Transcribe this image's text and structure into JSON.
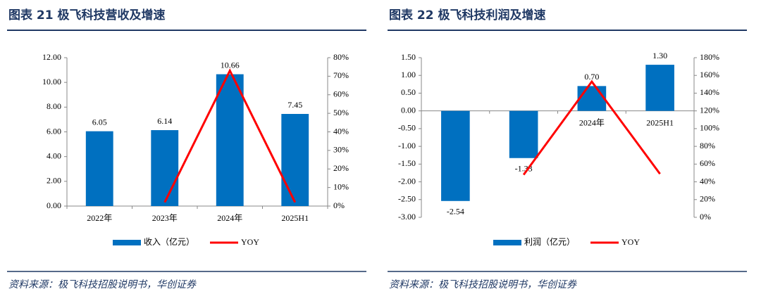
{
  "chart_data": [
    {
      "type": "bar",
      "title": "图表 21   极飞科技营收及增速",
      "categories": [
        "2022年",
        "2023年",
        "2024年",
        "2025H1"
      ],
      "series": [
        {
          "name": "收入（亿元）",
          "type": "bar",
          "color": "#0070c0",
          "values": [
            6.05,
            6.14,
            10.66,
            7.45
          ],
          "value_labels": [
            "6.05",
            "6.14",
            "10.66",
            "7.45"
          ]
        },
        {
          "name": "YOY",
          "type": "line",
          "axis": "y2",
          "color": "#ff0000",
          "values": [
            null,
            2,
            73,
            2
          ]
        }
      ],
      "ylim": [
        0,
        12
      ],
      "yticks": [
        {
          "value": 0,
          "label": "0.00"
        },
        {
          "value": 2,
          "label": "2.00"
        },
        {
          "value": 4,
          "label": "4.00"
        },
        {
          "value": 6,
          "label": "6.00"
        },
        {
          "value": 8,
          "label": "8.00"
        },
        {
          "value": 10,
          "label": "10.00"
        },
        {
          "value": 12,
          "label": "12.00"
        }
      ],
      "y2lim": [
        0,
        80
      ],
      "y2ticks": [
        {
          "value": 0,
          "label": "0%"
        },
        {
          "value": 10,
          "label": "10%"
        },
        {
          "value": 20,
          "label": "20%"
        },
        {
          "value": 30,
          "label": "30%"
        },
        {
          "value": 40,
          "label": "40%"
        },
        {
          "value": 50,
          "label": "50%"
        },
        {
          "value": 60,
          "label": "60%"
        },
        {
          "value": 70,
          "label": "70%"
        },
        {
          "value": 80,
          "label": "80%"
        }
      ],
      "legend": "bottom",
      "grid": false,
      "source": "资料来源：极飞科技招股说明书，华创证券"
    },
    {
      "type": "bar",
      "title": "图表 22   极飞科技利润及增速",
      "categories": [
        "2022年",
        "2023年",
        "2024年",
        "2025H1"
      ],
      "series": [
        {
          "name": "利润（亿元）",
          "type": "bar",
          "color": "#0070c0",
          "values": [
            -2.54,
            -1.33,
            0.7,
            1.3
          ],
          "value_labels": [
            "-2.54",
            "-1.33",
            "0.70",
            "1.30"
          ]
        },
        {
          "name": "YOY",
          "type": "line",
          "axis": "y2",
          "color": "#ff0000",
          "values": [
            null,
            48,
            153,
            49
          ]
        }
      ],
      "ylim": [
        -3,
        1.5
      ],
      "yticks": [
        {
          "value": -3,
          "label": "-3.00"
        },
        {
          "value": -2.5,
          "label": "-2.50"
        },
        {
          "value": -2,
          "label": "-2.00"
        },
        {
          "value": -1.5,
          "label": "-1.50"
        },
        {
          "value": -1,
          "label": "-1.00"
        },
        {
          "value": -0.5,
          "label": "-0.50"
        },
        {
          "value": 0,
          "label": "0.00"
        },
        {
          "value": 0.5,
          "label": "0.50"
        },
        {
          "value": 1,
          "label": "1.00"
        },
        {
          "value": 1.5,
          "label": "1.50"
        }
      ],
      "y2lim": [
        0,
        180
      ],
      "y2ticks": [
        {
          "value": 0,
          "label": "0%"
        },
        {
          "value": 20,
          "label": "20%"
        },
        {
          "value": 40,
          "label": "40%"
        },
        {
          "value": 60,
          "label": "60%"
        },
        {
          "value": 80,
          "label": "80%"
        },
        {
          "value": 100,
          "label": "100%"
        },
        {
          "value": 120,
          "label": "120%"
        },
        {
          "value": 140,
          "label": "140%"
        },
        {
          "value": 160,
          "label": "160%"
        },
        {
          "value": 180,
          "label": "180%"
        }
      ],
      "legend": "bottom",
      "grid": false,
      "source": "资料来源：极飞科技招股说明书，华创证券"
    }
  ]
}
